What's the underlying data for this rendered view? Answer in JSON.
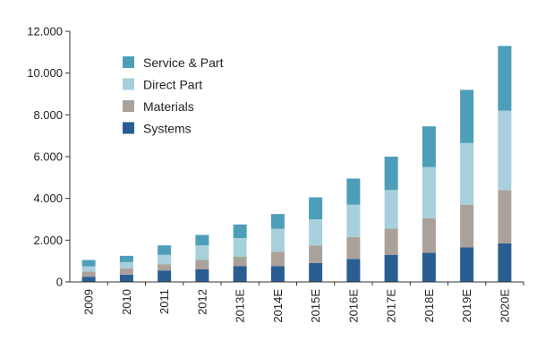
{
  "chart_data": {
    "type": "bar",
    "stacked": true,
    "title": "",
    "xlabel": "",
    "ylabel": "",
    "ylim": [
      0,
      12000
    ],
    "yticks": [
      0,
      2000,
      4000,
      6000,
      8000,
      10000,
      12000
    ],
    "ytick_labels": [
      "0",
      "2.000",
      "4.000",
      "6.000",
      "8.000",
      "10.000",
      "12.000"
    ],
    "grid": false,
    "legend_position": "top-left",
    "categories": [
      "2009",
      "2010",
      "2011",
      "2012",
      "2013E",
      "2014E",
      "2015E",
      "2016E",
      "2017E",
      "2018E",
      "2019E",
      "2020E"
    ],
    "series": [
      {
        "name": "Systems",
        "color": "#2a5e92",
        "values": [
          250,
          350,
          550,
          600,
          750,
          750,
          900,
          1100,
          1300,
          1400,
          1650,
          1850
        ]
      },
      {
        "name": "Materials",
        "color": "#aba19b",
        "values": [
          250,
          300,
          300,
          450,
          450,
          700,
          850,
          1050,
          1250,
          1650,
          2050,
          2550
        ]
      },
      {
        "name": "Direct Part",
        "color": "#a8cfdc",
        "values": [
          250,
          300,
          450,
          700,
          900,
          1100,
          1250,
          1550,
          1850,
          2450,
          2950,
          3800
        ]
      },
      {
        "name": "Service & Part",
        "color": "#4d9eb9",
        "values": [
          300,
          300,
          450,
          500,
          650,
          700,
          1050,
          1250,
          1600,
          1950,
          2550,
          3100
        ]
      }
    ],
    "legend_order": [
      "Service & Part",
      "Direct Part",
      "Materials",
      "Systems"
    ]
  }
}
